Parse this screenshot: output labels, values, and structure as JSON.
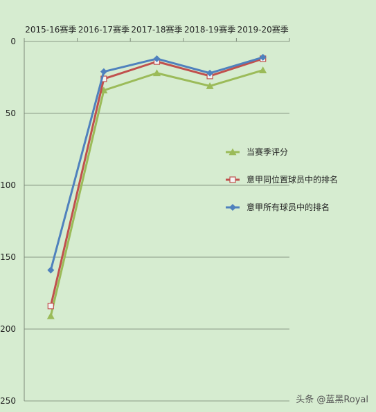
{
  "chart_data": {
    "type": "line",
    "categories": [
      "2015-16赛季",
      "2016-17赛季",
      "2017-18赛季",
      "2018-19赛季",
      "2019-20赛季"
    ],
    "y_axis": {
      "min": 0,
      "max": 250,
      "inverted": true,
      "ticks": [
        "0",
        "50",
        "100",
        "150",
        "200",
        "250"
      ],
      "tick_values": [
        0,
        50,
        100,
        150,
        200,
        250
      ]
    },
    "x_axis_position": "top",
    "grid": true,
    "legend_position": "right",
    "series": [
      {
        "name": "当赛季评分",
        "color": "#9bbb59",
        "marker": "triangle",
        "values": [
          191,
          34,
          22,
          31,
          20
        ]
      },
      {
        "name": "意甲同位置球员中的排名",
        "color": "#c0504d",
        "marker": "square-open",
        "values": [
          184,
          26,
          14,
          24,
          12
        ]
      },
      {
        "name": "意甲所有球员中的排名",
        "color": "#4f81bd",
        "marker": "diamond",
        "values": [
          159,
          21,
          12,
          22,
          11
        ]
      }
    ]
  },
  "watermark": "头条 @蓝黑Royal"
}
